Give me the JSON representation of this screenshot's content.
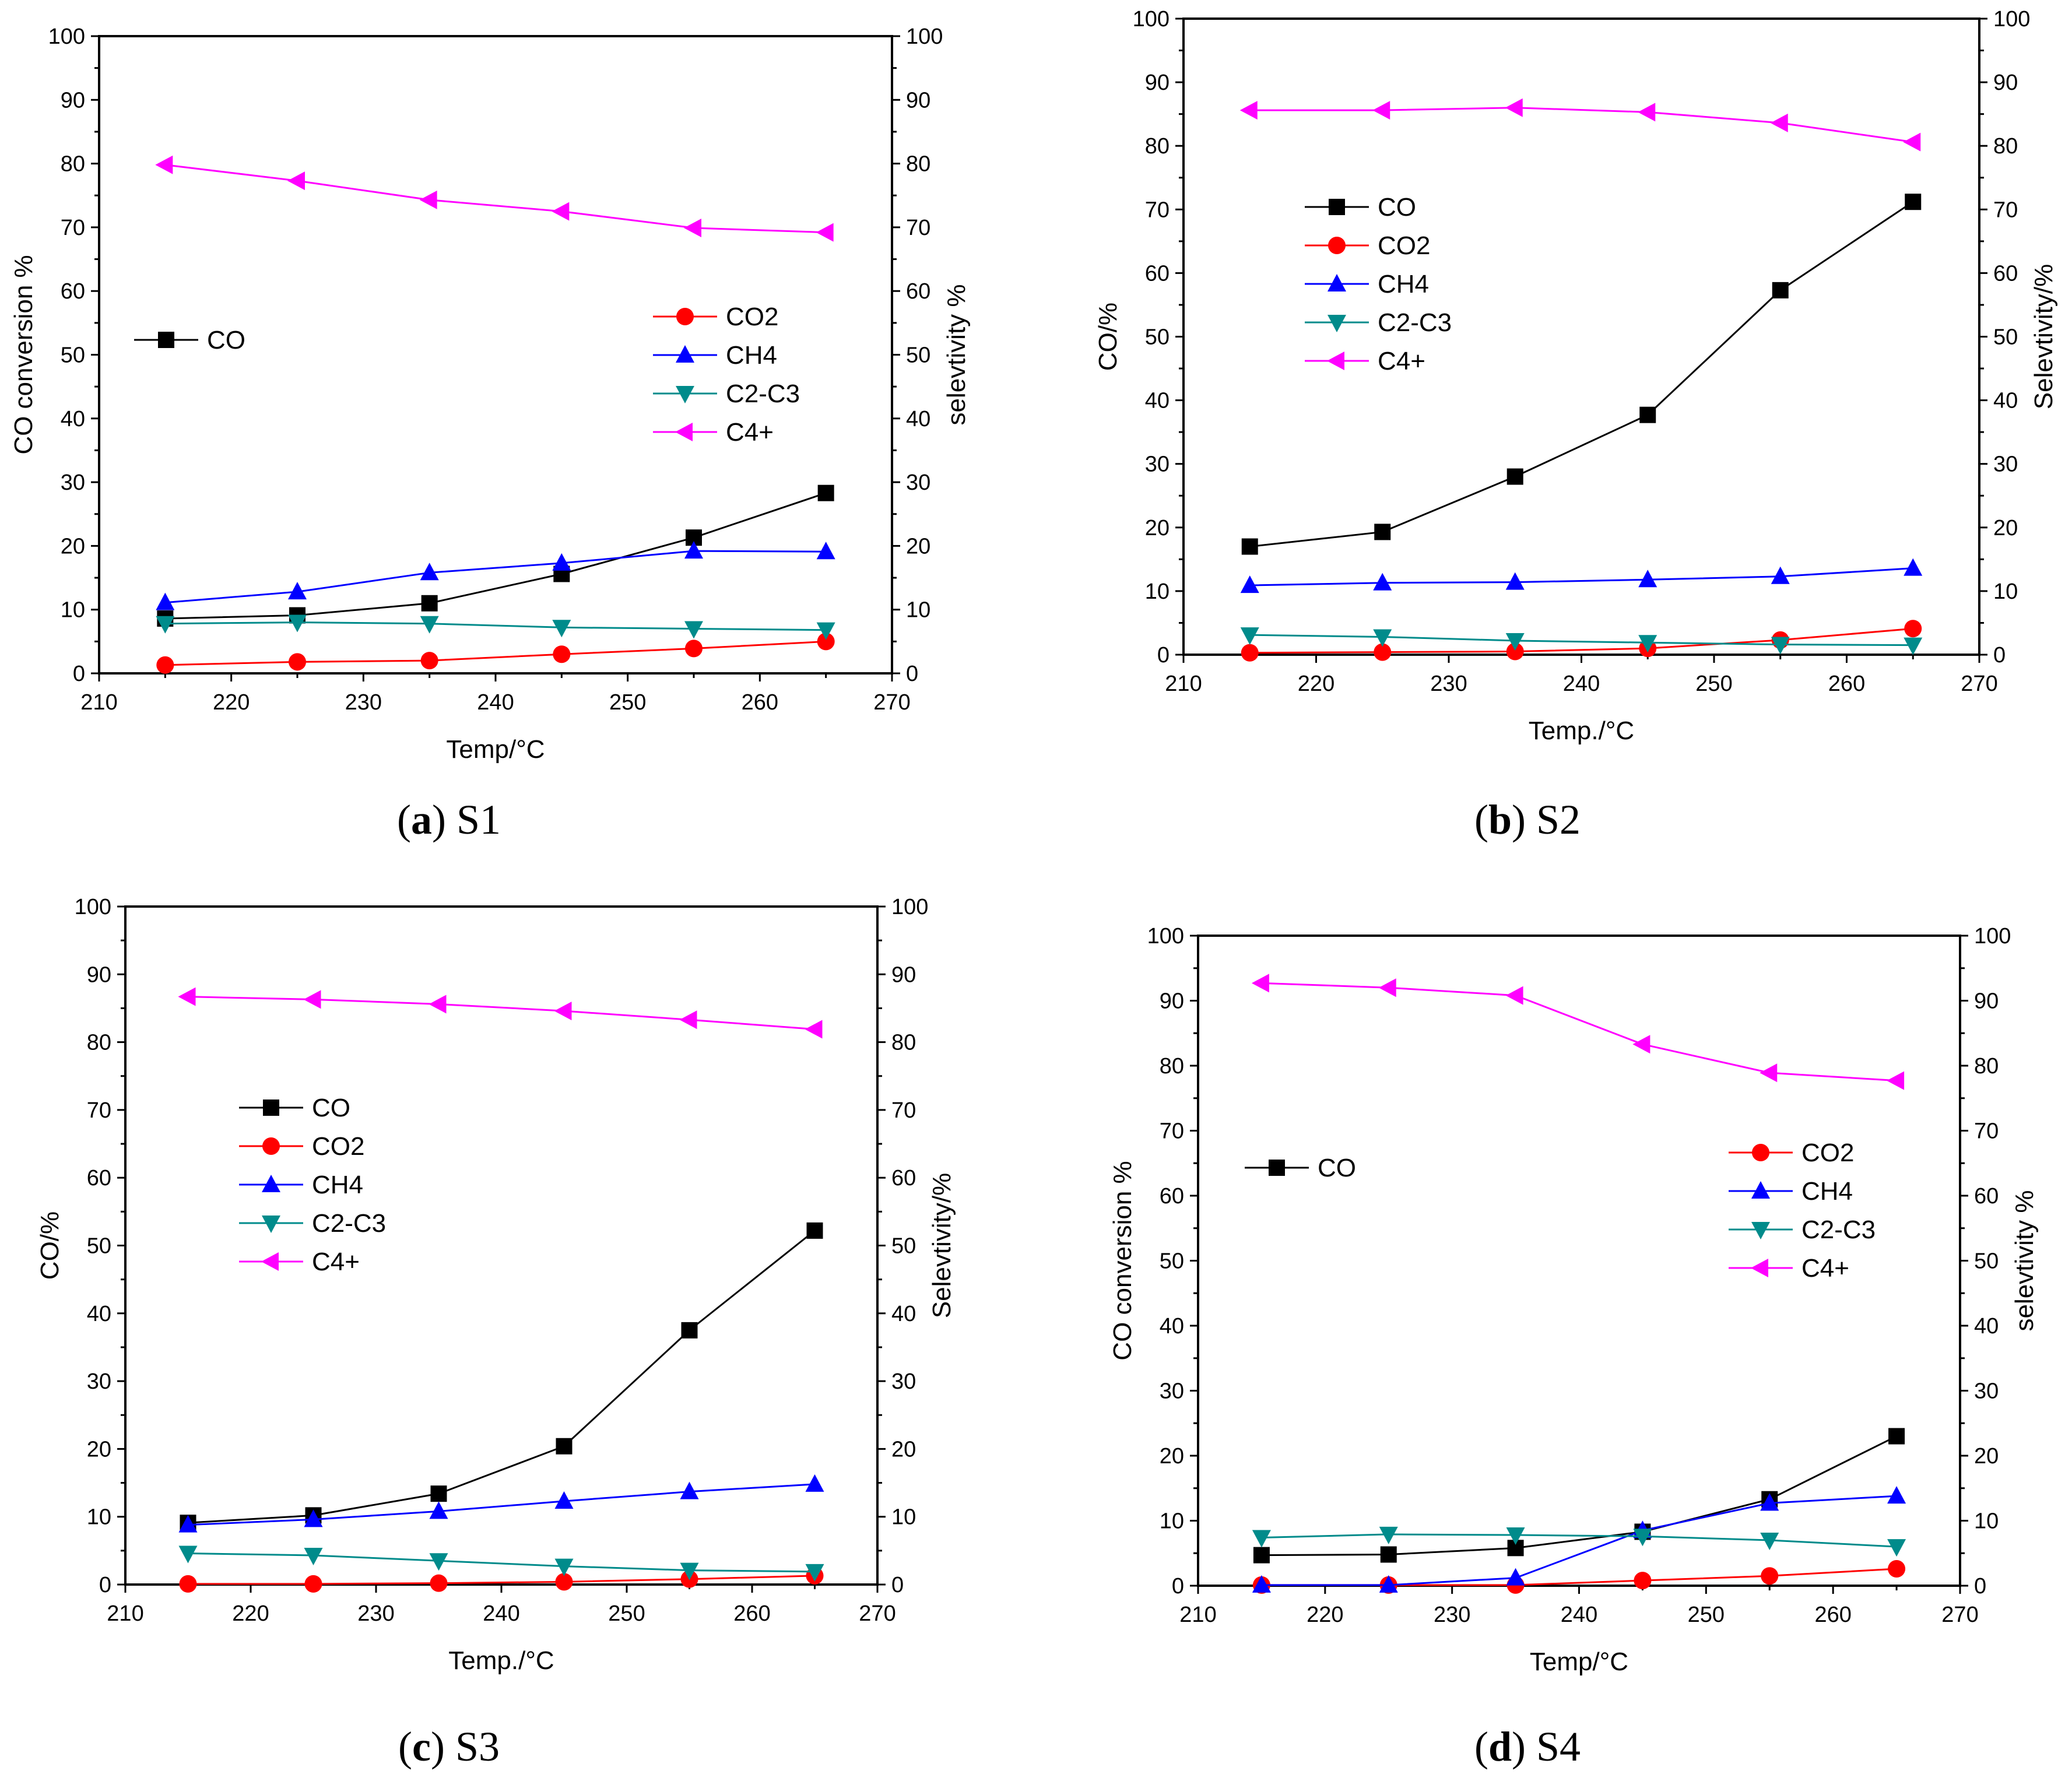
{
  "colors": {
    "CO": "#000000",
    "CO2": "#ff0000",
    "CH4": "#0000ff",
    "C2-C3": "#008b8b",
    "C4+": "#ff00ff"
  },
  "markers": {
    "CO": "square",
    "CO2": "circle",
    "CH4": "triangle-up",
    "C2-C3": "triangle-down",
    "C4+": "triangle-left"
  },
  "chart_data": [
    {
      "type": "line",
      "caption_letter": "a",
      "caption_name": "S1",
      "xlabel": "Temp/°C",
      "ylabel": "CO conversion %",
      "y2label": "selevtivity %",
      "xlim": [
        210,
        270
      ],
      "ylim": [
        0,
        100
      ],
      "y2lim": [
        0,
        100
      ],
      "xticks": [
        210,
        220,
        230,
        240,
        250,
        260,
        270
      ],
      "yticks": [
        0,
        10,
        20,
        30,
        40,
        50,
        60,
        70,
        80,
        90,
        100
      ],
      "legend_mode": "split",
      "x": [
        215,
        225,
        235,
        245,
        255,
        265
      ],
      "series": [
        {
          "name": "CO",
          "values": [
            8.6,
            9.1,
            11.0,
            15.6,
            21.3,
            28.3
          ]
        },
        {
          "name": "CO2",
          "values": [
            1.3,
            1.8,
            2.0,
            3.0,
            3.9,
            5.0
          ]
        },
        {
          "name": "CH4",
          "values": [
            11.1,
            12.8,
            15.8,
            17.3,
            19.2,
            19.1
          ]
        },
        {
          "name": "C2-C3",
          "values": [
            7.8,
            8.0,
            7.8,
            7.2,
            7.0,
            6.8
          ]
        },
        {
          "name": "C4+",
          "values": [
            79.8,
            77.3,
            74.3,
            72.5,
            69.9,
            69.2
          ]
        }
      ]
    },
    {
      "type": "line",
      "caption_letter": "b",
      "caption_name": "S2",
      "xlabel": "Temp./°C",
      "ylabel": "CO/%",
      "y2label": "Selevtivity/%",
      "xlim": [
        210,
        270
      ],
      "ylim": [
        0,
        100
      ],
      "y2lim": [
        0,
        100
      ],
      "xticks": [
        210,
        220,
        230,
        240,
        250,
        260,
        270
      ],
      "yticks": [
        0,
        10,
        20,
        30,
        40,
        50,
        60,
        70,
        80,
        90,
        100
      ],
      "legend_mode": "combined",
      "x": [
        215,
        225,
        235,
        245,
        255,
        265
      ],
      "series": [
        {
          "name": "CO",
          "values": [
            17.0,
            19.3,
            28.0,
            37.7,
            57.3,
            71.2
          ]
        },
        {
          "name": "CO2",
          "values": [
            0.3,
            0.4,
            0.5,
            1.0,
            2.3,
            4.1
          ]
        },
        {
          "name": "CH4",
          "values": [
            10.9,
            11.3,
            11.4,
            11.8,
            12.3,
            13.6
          ]
        },
        {
          "name": "C2-C3",
          "values": [
            3.1,
            2.8,
            2.2,
            1.9,
            1.6,
            1.5
          ]
        },
        {
          "name": "C4+",
          "values": [
            85.6,
            85.6,
            86.0,
            85.3,
            83.6,
            80.6
          ]
        }
      ]
    },
    {
      "type": "line",
      "caption_letter": "c",
      "caption_name": "S3",
      "xlabel": "Temp./°C",
      "ylabel": "CO/%",
      "y2label": "Selevtivity/%",
      "xlim": [
        210,
        270
      ],
      "ylim": [
        0,
        100
      ],
      "y2lim": [
        0,
        100
      ],
      "xticks": [
        210,
        220,
        230,
        240,
        250,
        260,
        270
      ],
      "yticks": [
        0,
        10,
        20,
        30,
        40,
        50,
        60,
        70,
        80,
        90,
        100
      ],
      "legend_mode": "combined",
      "x": [
        215,
        225,
        235,
        245,
        255,
        265
      ],
      "series": [
        {
          "name": "CO",
          "values": [
            9.1,
            10.2,
            13.4,
            20.4,
            37.5,
            52.2
          ]
        },
        {
          "name": "CO2",
          "values": [
            0.1,
            0.1,
            0.2,
            0.4,
            0.8,
            1.3
          ]
        },
        {
          "name": "CH4",
          "values": [
            8.8,
            9.6,
            10.8,
            12.3,
            13.7,
            14.8
          ]
        },
        {
          "name": "C2-C3",
          "values": [
            4.6,
            4.3,
            3.5,
            2.7,
            2.1,
            1.9
          ]
        },
        {
          "name": "C4+",
          "values": [
            86.7,
            86.3,
            85.6,
            84.6,
            83.3,
            81.9
          ]
        }
      ]
    },
    {
      "type": "line",
      "caption_letter": "d",
      "caption_name": "S4",
      "xlabel": "Temp/°C",
      "ylabel": "CO conversion %",
      "y2label": "selevtivity %",
      "xlim": [
        210,
        270
      ],
      "ylim": [
        0,
        100
      ],
      "y2lim": [
        0,
        100
      ],
      "xticks": [
        210,
        220,
        230,
        240,
        250,
        260,
        270
      ],
      "yticks": [
        0,
        10,
        20,
        30,
        40,
        50,
        60,
        70,
        80,
        90,
        100
      ],
      "legend_mode": "split",
      "x": [
        215,
        225,
        235,
        245,
        255,
        265
      ],
      "series": [
        {
          "name": "CO",
          "values": [
            4.7,
            4.8,
            5.8,
            8.3,
            13.3,
            23.0
          ]
        },
        {
          "name": "CO2",
          "values": [
            0.1,
            0.1,
            0.1,
            0.8,
            1.5,
            2.6
          ]
        },
        {
          "name": "CH4",
          "values": [
            0.1,
            0.1,
            1.2,
            8.5,
            12.7,
            13.8
          ]
        },
        {
          "name": "C2-C3",
          "values": [
            7.4,
            7.9,
            7.8,
            7.6,
            7.0,
            6.0
          ]
        },
        {
          "name": "C4+",
          "values": [
            92.7,
            92.0,
            90.8,
            83.3,
            78.9,
            77.7
          ]
        }
      ]
    }
  ]
}
